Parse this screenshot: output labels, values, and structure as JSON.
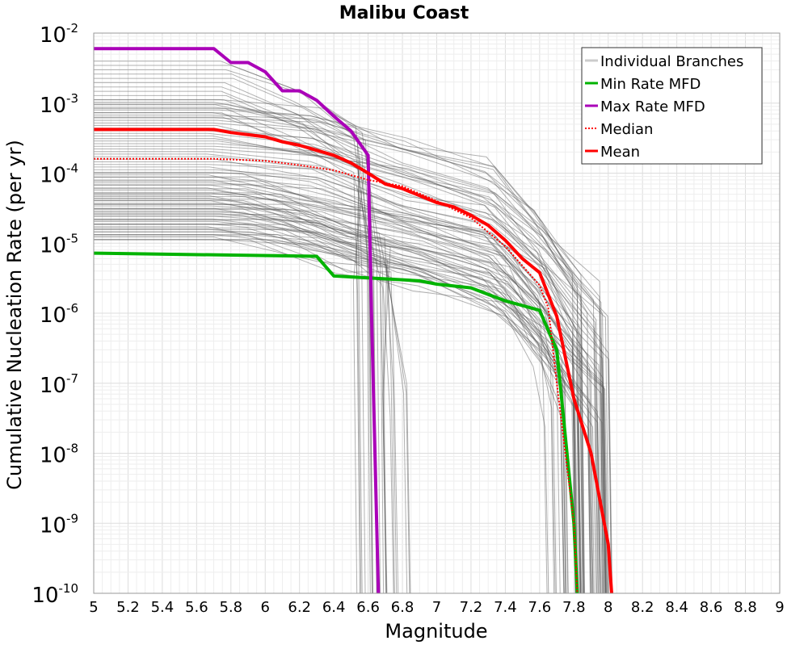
{
  "chart_data": {
    "type": "line",
    "title": "Malibu Coast",
    "xlabel": "Magnitude",
    "ylabel": "Cumulative Nucleation Rate (per yr)",
    "xlim": [
      5,
      9
    ],
    "ylim": [
      1e-10,
      0.01
    ],
    "yscale": "log",
    "grid": true,
    "legend_position": "top-right",
    "x_ticks": [
      "5",
      "5.2",
      "5.4",
      "5.6",
      "5.8",
      "6",
      "6.2",
      "6.4",
      "6.6",
      "6.8",
      "7",
      "7.2",
      "7.4",
      "7.6",
      "7.8",
      "8",
      "8.2",
      "8.4",
      "8.6",
      "8.8",
      "9"
    ],
    "y_ticks": [
      {
        "base": "10",
        "exp": "-10",
        "value": 1e-10
      },
      {
        "base": "10",
        "exp": "-9",
        "value": 1e-09
      },
      {
        "base": "10",
        "exp": "-8",
        "value": 1e-08
      },
      {
        "base": "10",
        "exp": "-7",
        "value": 1e-07
      },
      {
        "base": "10",
        "exp": "-6",
        "value": 1e-06
      },
      {
        "base": "10",
        "exp": "-5",
        "value": 1e-05
      },
      {
        "base": "10",
        "exp": "-4",
        "value": 0.0001
      },
      {
        "base": "10",
        "exp": "-3",
        "value": 0.001
      },
      {
        "base": "10",
        "exp": "-2",
        "value": 0.01
      }
    ],
    "series": [
      {
        "name": "Individual Branches",
        "color": "#555555",
        "style": "solid",
        "kind": "branch-bundle",
        "groups": [
          {
            "log_top": -2.4,
            "log_bottom": -3.2,
            "count": 14,
            "knee": 5.78,
            "tail": [
              [
                6.2,
                -0.4
              ],
              [
                6.55,
                -1.0
              ]
            ],
            "cut": 6.6
          },
          {
            "log_top": -2.95,
            "log_bottom": -4.95,
            "count": 55,
            "knee": 5.7,
            "tail": [
              [
                6.3,
                -0.2
              ],
              [
                6.8,
                -0.55
              ],
              [
                7.3,
                -0.9
              ],
              [
                7.6,
                -1.6
              ]
            ],
            "cut": 7.9
          },
          {
            "log_top": -4.0,
            "log_bottom": -4.95,
            "count": 18,
            "knee": 5.9,
            "tail": [
              [
                6.4,
                -0.35
              ],
              [
                6.9,
                -0.65
              ],
              [
                7.4,
                -1.1
              ],
              [
                7.6,
                -1.8
              ]
            ],
            "cut": 7.72
          },
          {
            "log_top": -4.3,
            "log_bottom": -4.95,
            "count": 10,
            "knee": 6.1,
            "tail": [
              [
                6.5,
                -0.4
              ],
              [
                6.7,
                -0.6
              ]
            ],
            "cut": 6.72
          }
        ]
      },
      {
        "name": "Min Rate MFD",
        "color": "#00b300",
        "style": "solid",
        "x": [
          5.0,
          6.3,
          6.4,
          6.8,
          6.9,
          7.0,
          7.2,
          7.4,
          7.6,
          7.7,
          7.8,
          7.82
        ],
        "values": [
          7.2e-06,
          6.5e-06,
          3.4e-06,
          3e-06,
          2.9e-06,
          2.6e-06,
          2.3e-06,
          1.5e-06,
          1.1e-06,
          3e-07,
          1e-09,
          1e-10
        ]
      },
      {
        "name": "Max Rate MFD",
        "color": "#aa00b8",
        "style": "solid",
        "x": [
          5.0,
          5.7,
          5.8,
          5.9,
          6.0,
          6.1,
          6.2,
          6.3,
          6.4,
          6.5,
          6.6,
          6.62,
          6.66
        ],
        "values": [
          0.006,
          0.006,
          0.0038,
          0.0038,
          0.0028,
          0.0015,
          0.0015,
          0.0011,
          0.00065,
          0.0004,
          0.00018,
          1e-06,
          1e-10
        ]
      },
      {
        "name": "Median",
        "color": "#ff0000",
        "style": "dotted",
        "x": [
          5.0,
          5.7,
          6.0,
          6.2,
          6.4,
          6.6,
          6.8,
          7.0,
          7.2,
          7.4,
          7.6,
          7.65,
          7.7,
          7.8,
          7.82
        ],
        "values": [
          0.00016,
          0.00016,
          0.00015,
          0.00013,
          0.00011,
          8e-05,
          6.5e-05,
          4e-05,
          2.3e-05,
          9e-06,
          2.5e-06,
          1.2e-06,
          1e-07,
          1e-09,
          1e-10
        ]
      },
      {
        "name": "Mean",
        "color": "#ff0000",
        "style": "solid",
        "x": [
          5.0,
          5.7,
          5.8,
          6.0,
          6.1,
          6.2,
          6.4,
          6.5,
          6.6,
          6.7,
          6.8,
          7.0,
          7.1,
          7.2,
          7.3,
          7.4,
          7.5,
          7.6,
          7.7,
          7.8,
          7.9,
          8.0,
          8.02
        ],
        "values": [
          0.00042,
          0.00042,
          0.00038,
          0.00033,
          0.00028,
          0.00025,
          0.00018,
          0.00014,
          0.0001,
          7e-05,
          6e-05,
          3.8e-05,
          3.3e-05,
          2.5e-05,
          1.8e-05,
          1.1e-05,
          6e-06,
          3.8e-06,
          9e-07,
          6e-08,
          1e-08,
          5e-10,
          1e-10
        ]
      }
    ],
    "legend": [
      {
        "name": "Individual Branches",
        "color": "#cccccc",
        "style": "solid"
      },
      {
        "name": "Min Rate MFD",
        "color": "#00b300",
        "style": "solid"
      },
      {
        "name": "Max Rate MFD",
        "color": "#aa00b8",
        "style": "solid"
      },
      {
        "name": "Median",
        "color": "#ff0000",
        "style": "dotted"
      },
      {
        "name": "Mean",
        "color": "#ff0000",
        "style": "solid"
      }
    ]
  }
}
